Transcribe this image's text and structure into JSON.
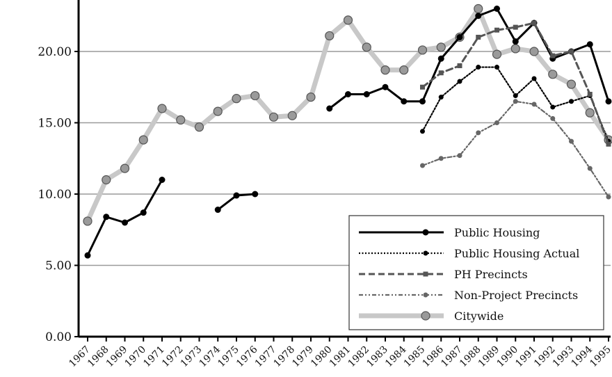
{
  "chart_data": {
    "type": "line",
    "title": "",
    "xlabel": "",
    "ylabel": "",
    "ylim": [
      0,
      24
    ],
    "yticks": [
      0,
      5,
      10,
      15,
      20
    ],
    "ytick_labels": [
      "0.00",
      "5.00",
      "10.00",
      "15.00",
      "20.00"
    ],
    "grid": "horizontal",
    "legend_position": "bottom-right",
    "x": [
      "1967",
      "1968",
      "1969",
      "1970",
      "1971",
      "1972",
      "1973",
      "1974",
      "1975",
      "1976",
      "1977",
      "1978",
      "1979",
      "1980",
      "1981",
      "1982",
      "1983",
      "1984",
      "1985",
      "1986",
      "1987",
      "1988",
      "1989",
      "1990",
      "1991",
      "1992",
      "1993",
      "1994",
      "1995"
    ],
    "series": [
      {
        "name": "Public Housing",
        "style": "solid-black",
        "color": "#000000",
        "values": [
          5.7,
          8.4,
          8.0,
          8.7,
          11.0,
          null,
          null,
          8.9,
          9.9,
          10.0,
          null,
          null,
          null,
          16.0,
          17.0,
          17.0,
          17.5,
          16.5,
          16.5,
          19.5,
          21.0,
          22.5,
          23.0,
          20.7,
          22.0,
          19.5,
          20.0,
          20.5,
          16.5
        ]
      },
      {
        "name": "Public Housing Actual",
        "style": "dotted-black",
        "color": "#000000",
        "values": [
          null,
          null,
          null,
          null,
          null,
          null,
          null,
          null,
          null,
          null,
          null,
          null,
          null,
          null,
          null,
          null,
          null,
          null,
          14.4,
          16.8,
          17.9,
          18.9,
          18.9,
          16.9,
          18.1,
          16.1,
          16.5,
          16.9,
          13.7
        ]
      },
      {
        "name": "PH Precincts",
        "style": "dashed-gray",
        "color": "#555555",
        "values": [
          null,
          null,
          null,
          null,
          null,
          null,
          null,
          null,
          null,
          null,
          null,
          null,
          null,
          null,
          null,
          null,
          null,
          null,
          17.5,
          18.5,
          19.0,
          21.0,
          21.5,
          21.7,
          22.0,
          19.7,
          20.0,
          17.0,
          13.5
        ]
      },
      {
        "name": "Non-Project Precincts",
        "style": "dashdot-gray",
        "color": "#666666",
        "values": [
          null,
          null,
          null,
          null,
          null,
          null,
          null,
          null,
          null,
          null,
          null,
          null,
          null,
          null,
          null,
          null,
          null,
          null,
          12.0,
          12.5,
          12.7,
          14.3,
          15.0,
          16.5,
          16.3,
          15.3,
          13.7,
          11.8,
          9.8
        ]
      },
      {
        "name": "Citywide",
        "style": "thick-lightgray",
        "color": "#c8c8c8",
        "marker_color": "#9a9a9a",
        "values": [
          8.1,
          11.0,
          11.8,
          13.8,
          16.0,
          15.2,
          14.7,
          15.8,
          16.7,
          16.9,
          15.4,
          15.5,
          16.8,
          21.1,
          22.2,
          20.3,
          18.7,
          18.7,
          20.1,
          20.3,
          21.0,
          23.0,
          19.8,
          20.2,
          20.0,
          18.4,
          17.7,
          15.7,
          13.8
        ]
      }
    ]
  }
}
